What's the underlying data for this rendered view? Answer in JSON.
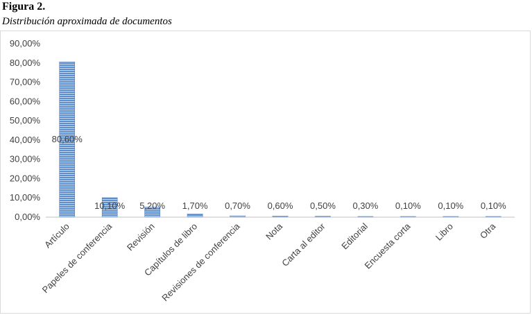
{
  "figure": {
    "label": "Figura 2.",
    "caption": "Distribución aproximada de documentos"
  },
  "chart_data": {
    "type": "bar",
    "title": "",
    "xlabel": "",
    "ylabel": "",
    "categories": [
      "Artículo",
      "Papeles de conferencia",
      "Revisión",
      "Capítulos de libro",
      "Revisiones de conferencia",
      "Nota",
      "Carta al editor",
      "Editorial",
      "Encuesta corta",
      "Libro",
      "Otra"
    ],
    "values": [
      80.6,
      10.1,
      5.2,
      1.7,
      0.7,
      0.6,
      0.5,
      0.3,
      0.1,
      0.1,
      0.1
    ],
    "data_labels": [
      "80,60%",
      "10,10%",
      "5,20%",
      "1,70%",
      "0,70%",
      "0,60%",
      "0,50%",
      "0,30%",
      "0,10%",
      "0,10%",
      "0,10%"
    ],
    "ylim": [
      0,
      90
    ],
    "yticks": [
      0,
      10,
      20,
      30,
      40,
      50,
      60,
      70,
      80,
      90
    ],
    "ytick_labels": [
      "0,00%",
      "10,00%",
      "20,00%",
      "30,00%",
      "40,00%",
      "50,00%",
      "60,00%",
      "70,00%",
      "80,00%",
      "90,00%"
    ],
    "grid": false,
    "legend": "none",
    "bar_color": "#5b8fd0",
    "bar_stripe_color": "#ffffff"
  }
}
